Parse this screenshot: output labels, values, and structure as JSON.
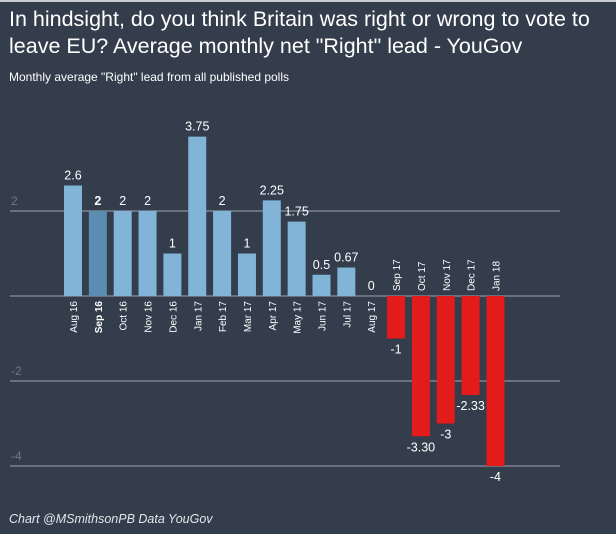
{
  "chart_data": {
    "type": "bar",
    "title": "In hindsight, do you think Britain was right or wrong to vote to leave EU? Average monthly net \"Right\" lead - YouGov",
    "subtitle": "Monthly average \"Right\" lead from all published polls",
    "credit": "Chart @MSmithsonPB Data YouGov",
    "xlabel": "",
    "ylabel": "",
    "ylim": [
      -4,
      4
    ],
    "yticks": [
      {
        "value": 2,
        "label": "2"
      },
      {
        "value": -2,
        "label": "-2"
      },
      {
        "value": -4,
        "label": "-4"
      }
    ],
    "grid": true,
    "categories": [
      "Aug 16",
      "Sep 16",
      "Oct 16",
      "Nov 16",
      "Dec 16",
      "Jan 17",
      "Feb 17",
      "Mar 17",
      "Apr 17",
      "May 17",
      "Jun 17",
      "Jul 17",
      "Aug 17",
      "Sep 17",
      "Oct 17",
      "Nov 17",
      "Dec 17",
      "Jan 18"
    ],
    "values": [
      2.6,
      2,
      2,
      2,
      1,
      3.75,
      2,
      1,
      2.25,
      1.75,
      0.5,
      0.67,
      0,
      -1,
      -3.3,
      -3,
      -2.33,
      -4
    ],
    "value_labels": [
      "2.6",
      "2",
      "2",
      "2",
      "1",
      "3.75",
      "2",
      "1",
      "2.25",
      "1.75",
      "0.5",
      "0.67",
      "0",
      "-1",
      "-3.30",
      "-3",
      "-2.33",
      "-4"
    ],
    "highlighted_category": "Sep 16",
    "colors": {
      "positive": "#82b4d8",
      "highlight": "#5b8db3",
      "negative": "#e31b1b",
      "background": "#333d4c",
      "grid": "#8a919b"
    }
  }
}
